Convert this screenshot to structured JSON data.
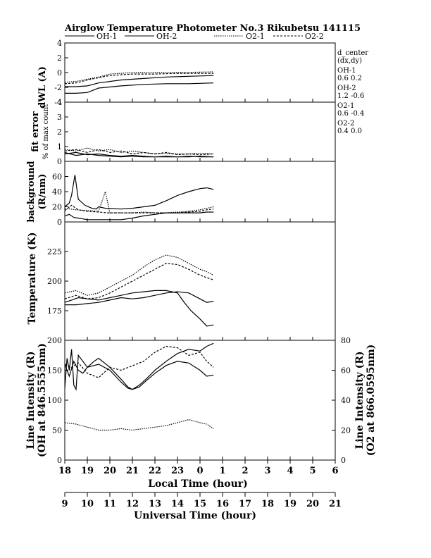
{
  "title": "Airglow Temperature Photometer No.3  Rikubetsu    141115",
  "legend": [
    {
      "label": "OH-1",
      "style": "solid"
    },
    {
      "label": "OH-2",
      "style": "solid"
    },
    {
      "label": "O2-1",
      "style": "dotted"
    },
    {
      "label": "O2-2",
      "style": "dashed"
    }
  ],
  "side_text": {
    "header": "d_center",
    "subheader": "(dx,dy)",
    "entries": [
      {
        "name": "OH-1",
        "value": "0.6   0.2"
      },
      {
        "name": "OH-2",
        "value": "1.2   -0.6"
      },
      {
        "name": "O2-1",
        "value": "0.6   -0.4"
      },
      {
        "name": "O2-2",
        "value": "0.4   0.0"
      }
    ]
  },
  "local_time_ticks": [
    "18",
    "19",
    "20",
    "21",
    "22",
    "23",
    "0",
    "1",
    "2",
    "3",
    "4",
    "5",
    "6"
  ],
  "universal_time_ticks": [
    "9",
    "10",
    "11",
    "12",
    "13",
    "14",
    "15",
    "16",
    "17",
    "18",
    "19",
    "20",
    "21"
  ],
  "xlabel_local": "Local Time (hour)",
  "xlabel_universal": "Universal Time (hour)",
  "chart_data": [
    {
      "type": "line",
      "panel": "dWL",
      "ylabel": "dWL (A)",
      "yticks": [
        "4",
        "2",
        "0",
        "-2",
        "-4"
      ],
      "ylim": [
        -4,
        4
      ],
      "x_unit": "local hour (18-30)",
      "series": [
        {
          "name": "OH-1",
          "style": "solid",
          "x": [
            18.0,
            18.5,
            19.0,
            19.5,
            20.5,
            21.5,
            22.5,
            23.5,
            24.6
          ],
          "y": [
            -1.9,
            -1.9,
            -1.8,
            -1.4,
            -1.0,
            -0.8,
            -0.6,
            -0.5,
            -0.4
          ]
        },
        {
          "name": "OH-2",
          "style": "solid",
          "x": [
            18.0,
            18.5,
            19.0,
            19.5,
            20.5,
            21.5,
            22.5,
            23.5,
            24.6
          ],
          "y": [
            -2.8,
            -2.8,
            -2.7,
            -2.1,
            -1.8,
            -1.6,
            -1.5,
            -1.5,
            -1.4
          ]
        },
        {
          "name": "O2-1",
          "style": "dotted",
          "x": [
            18.0,
            18.5,
            19.0,
            19.5,
            20.0,
            21.0,
            22.0,
            23.0,
            24.6
          ],
          "y": [
            -1.3,
            -1.2,
            -0.9,
            -0.6,
            -0.2,
            0.0,
            0.0,
            0.0,
            0.1
          ]
        },
        {
          "name": "O2-2",
          "style": "dashed",
          "x": [
            18.0,
            18.5,
            19.0,
            19.5,
            20.0,
            21.0,
            22.0,
            23.0,
            24.6
          ],
          "y": [
            -1.5,
            -1.4,
            -1.0,
            -0.7,
            -0.4,
            -0.2,
            -0.2,
            -0.1,
            -0.1
          ]
        }
      ]
    },
    {
      "type": "line",
      "panel": "fit error",
      "ylabel": "fit error",
      "ylabel2": "% of max count",
      "yticks": [
        "4",
        "3",
        "2",
        "1",
        "0"
      ],
      "ylim": [
        0,
        4
      ],
      "x_unit": "local hour (18-30)",
      "series": [
        {
          "name": "OH-1",
          "style": "solid",
          "x": [
            18.0,
            18.5,
            19.0,
            19.5,
            20.0,
            20.5,
            21.0,
            21.5,
            22.0,
            22.5,
            23.0,
            23.5,
            24.0,
            24.6
          ],
          "y": [
            0.6,
            0.4,
            0.5,
            0.4,
            0.35,
            0.3,
            0.35,
            0.3,
            0.3,
            0.3,
            0.3,
            0.3,
            0.35,
            0.3
          ]
        },
        {
          "name": "OH-2",
          "style": "solid",
          "x": [
            18.0,
            18.5,
            19.0,
            19.5,
            20.0,
            20.5,
            21.0,
            21.5,
            22.0,
            22.5,
            23.0,
            23.5,
            24.0,
            24.6
          ],
          "y": [
            0.5,
            0.6,
            0.45,
            0.5,
            0.4,
            0.35,
            0.4,
            0.35,
            0.3,
            0.35,
            0.3,
            0.35,
            0.3,
            0.3
          ]
        },
        {
          "name": "O2-1",
          "style": "dotted",
          "x": [
            18.0,
            18.5,
            19.0,
            19.5,
            20.0,
            20.5,
            21.0,
            21.5,
            22.0,
            22.5,
            23.0,
            23.5,
            24.0,
            24.6
          ],
          "y": [
            0.8,
            0.7,
            0.9,
            0.7,
            0.8,
            0.6,
            0.7,
            0.6,
            0.5,
            0.55,
            0.5,
            0.5,
            0.55,
            0.5
          ]
        },
        {
          "name": "O2-2",
          "style": "dashed",
          "x": [
            18.0,
            18.5,
            19.0,
            19.5,
            20.0,
            20.5,
            21.0,
            21.5,
            22.0,
            22.5,
            23.0,
            23.5,
            24.0,
            24.6
          ],
          "y": [
            0.7,
            0.8,
            0.6,
            0.8,
            0.6,
            0.7,
            0.5,
            0.6,
            0.5,
            0.6,
            0.45,
            0.5,
            0.45,
            0.5
          ]
        }
      ]
    },
    {
      "type": "line",
      "panel": "background",
      "ylabel": "background",
      "ylabel2": "(R/nm)",
      "yticks": [
        "60",
        "40",
        "20",
        "0"
      ],
      "ylim": [
        0,
        80
      ],
      "x_unit": "local hour (18-30)",
      "series": [
        {
          "name": "OH-1",
          "style": "solid",
          "x": [
            18.0,
            18.2,
            18.4,
            18.6,
            18.8,
            19.0,
            19.5,
            20.0,
            20.5,
            21.0,
            21.5,
            22.0,
            22.5,
            23.0,
            23.5,
            24.0,
            24.3,
            24.6
          ],
          "y": [
            8,
            10,
            6,
            5,
            4,
            3,
            3,
            3,
            3,
            5,
            8,
            10,
            12,
            12,
            12,
            12,
            13,
            13
          ]
        },
        {
          "name": "OH-2",
          "style": "solid",
          "x": [
            18.0,
            18.2,
            18.3,
            18.45,
            18.6,
            18.9,
            19.2,
            19.4,
            19.5,
            19.8,
            20.5,
            21.0,
            21.5,
            22.0,
            22.5,
            23.0,
            23.5,
            24.0,
            24.3,
            24.6
          ],
          "y": [
            20,
            25,
            35,
            62,
            30,
            22,
            18,
            17,
            20,
            18,
            17,
            18,
            20,
            22,
            28,
            35,
            40,
            44,
            45,
            43
          ]
        },
        {
          "name": "O2-1",
          "style": "dotted",
          "x": [
            18.0,
            18.5,
            19.0,
            19.5,
            19.8,
            20.0,
            20.5,
            21.0,
            21.5,
            22.0,
            22.5,
            23.0,
            23.5,
            24.0,
            24.3,
            24.6
          ],
          "y": [
            18,
            16,
            15,
            14,
            40,
            12,
            12,
            12,
            13,
            12,
            12,
            13,
            14,
            16,
            18,
            20
          ]
        },
        {
          "name": "O2-2",
          "style": "dashed",
          "x": [
            18.0,
            18.3,
            18.6,
            19.0,
            19.5,
            19.9,
            20.5,
            21.0,
            21.5,
            22.0,
            22.5,
            23.0,
            23.5,
            24.0,
            24.3,
            24.6
          ],
          "y": [
            15,
            22,
            16,
            14,
            13,
            12,
            12,
            12,
            12,
            12,
            12,
            12,
            13,
            14,
            16,
            17
          ]
        }
      ]
    },
    {
      "type": "line",
      "panel": "temperature",
      "ylabel": "Temperature (K)",
      "yticks": [
        "225",
        "200",
        "175"
      ],
      "ylim": [
        150,
        250
      ],
      "x_unit": "local hour (18-30)",
      "series": [
        {
          "name": "OH-1",
          "style": "solid",
          "x": [
            18.0,
            18.5,
            19.0,
            19.5,
            20.0,
            20.5,
            21.0,
            21.5,
            22.0,
            22.5,
            23.0,
            23.5,
            24.0,
            24.3,
            24.6
          ],
          "y": [
            180,
            180,
            181,
            182,
            184,
            186,
            185,
            186,
            188,
            190,
            191,
            190,
            185,
            182,
            183
          ]
        },
        {
          "name": "OH-2",
          "style": "solid",
          "x": [
            18.0,
            18.3,
            18.6,
            19.0,
            19.5,
            20.0,
            20.5,
            21.0,
            21.5,
            22.0,
            22.5,
            23.0,
            23.3,
            23.6,
            24.0,
            24.3,
            24.6
          ],
          "y": [
            182,
            184,
            186,
            185,
            184,
            186,
            188,
            190,
            191,
            192,
            192,
            190,
            182,
            175,
            168,
            162,
            163
          ]
        },
        {
          "name": "O2-1",
          "style": "dotted",
          "x": [
            18.0,
            18.5,
            19.0,
            19.5,
            20.0,
            20.5,
            21.0,
            21.5,
            22.0,
            22.5,
            23.0,
            23.5,
            24.0,
            24.3,
            24.6
          ],
          "y": [
            190,
            192,
            188,
            190,
            195,
            200,
            205,
            212,
            218,
            222,
            220,
            215,
            210,
            208,
            205
          ]
        },
        {
          "name": "O2-2",
          "style": "dashed",
          "x": [
            18.0,
            18.5,
            19.0,
            19.5,
            20.0,
            20.5,
            21.0,
            21.5,
            22.0,
            22.5,
            23.0,
            23.5,
            24.0,
            24.3,
            24.6
          ],
          "y": [
            185,
            188,
            185,
            186,
            190,
            195,
            200,
            205,
            210,
            215,
            214,
            210,
            205,
            203,
            201
          ]
        }
      ]
    },
    {
      "type": "line",
      "panel": "line intensity",
      "ylabel": "Line Intensity (R)",
      "ylabel2": "(OH at 846.5555nm)",
      "ylabel_right": "Line Intensity (R)",
      "ylabel_right2": "(O2 at 866.0595nm)",
      "yticks": [
        "200",
        "150",
        "100",
        "50",
        "0"
      ],
      "yticks_right": [
        "80",
        "60",
        "40",
        "20",
        "0"
      ],
      "ylim": [
        0,
        200
      ],
      "ylim_right": [
        0,
        80
      ],
      "x_unit": "local hour (18-30)",
      "series": [
        {
          "name": "OH-1",
          "style": "solid",
          "axis": "left",
          "x": [
            18.0,
            18.2,
            18.4,
            18.6,
            18.8,
            19.0,
            19.5,
            20.0,
            20.5,
            20.8,
            21.0,
            21.3,
            21.6,
            22.0,
            22.5,
            23.0,
            23.5,
            24.0,
            24.3,
            24.6
          ],
          "y": [
            160,
            140,
            165,
            150,
            145,
            155,
            160,
            150,
            130,
            120,
            118,
            125,
            135,
            150,
            165,
            178,
            185,
            182,
            190,
            195
          ]
        },
        {
          "name": "OH-2",
          "style": "solid",
          "axis": "left",
          "x": [
            18.0,
            18.1,
            18.2,
            18.3,
            18.4,
            18.5,
            18.6,
            18.8,
            19.0,
            19.3,
            19.5,
            20.0,
            20.5,
            20.8,
            21.0,
            21.3,
            21.6,
            22.0,
            22.5,
            23.0,
            23.5,
            24.0,
            24.3,
            24.6
          ],
          "y": [
            120,
            170,
            150,
            185,
            125,
            118,
            175,
            165,
            155,
            165,
            170,
            155,
            135,
            122,
            118,
            122,
            132,
            145,
            158,
            165,
            162,
            150,
            140,
            142
          ]
        },
        {
          "name": "O2-1",
          "style": "dotted",
          "axis": "right",
          "x": [
            18.0,
            18.5,
            19.0,
            19.5,
            20.0,
            20.5,
            21.0,
            21.5,
            22.0,
            22.5,
            23.0,
            23.5,
            24.0,
            24.3,
            24.6
          ],
          "y": [
            25,
            24,
            22,
            20,
            20,
            21,
            20,
            21,
            22,
            23,
            25,
            27,
            25,
            24,
            21
          ]
        },
        {
          "name": "O2-2",
          "style": "dashed",
          "axis": "right",
          "x": [
            18.0,
            18.3,
            18.6,
            19.0,
            19.5,
            20.0,
            20.5,
            21.0,
            21.5,
            22.0,
            22.5,
            23.0,
            23.5,
            24.0,
            24.3,
            24.6
          ],
          "y": [
            64,
            62,
            65,
            58,
            55,
            62,
            60,
            63,
            66,
            72,
            76,
            75,
            70,
            72,
            66,
            62
          ]
        }
      ]
    }
  ]
}
